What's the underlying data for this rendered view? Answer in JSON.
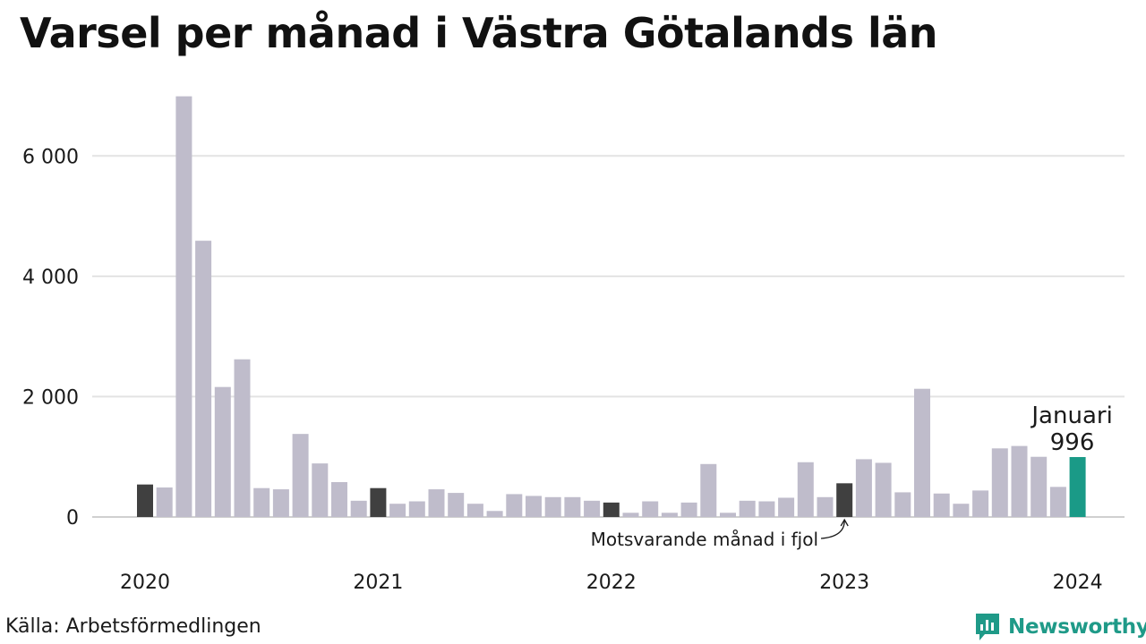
{
  "title": "Varsel per månad i Västra Götalands län",
  "source": "Källa: Arbetsförmedlingen",
  "brand": {
    "name": "Newsworthy",
    "icon": "newsworthy-logo-icon",
    "color": "#1f9a88"
  },
  "colors": {
    "bar": "#bfbccb",
    "same_month": "#404040",
    "current": "#1a9a87",
    "grid": "#e3e3e3"
  },
  "chart_data": {
    "type": "bar",
    "title": "Varsel per månad i Västra Götalands län",
    "xlabel": "",
    "ylabel": "",
    "ylim": [
      0,
      7000
    ],
    "yticks": [
      0,
      2000,
      4000,
      6000
    ],
    "ytick_labels": [
      "0",
      "2 000",
      "4 000",
      "6 000"
    ],
    "xtick_labels": [
      {
        "label": "2020",
        "index": 0
      },
      {
        "label": "2021",
        "index": 12
      },
      {
        "label": "2022",
        "index": 24
      },
      {
        "label": "2023",
        "index": 36
      },
      {
        "label": "2024",
        "index": 48
      }
    ],
    "grid": true,
    "values": [
      540,
      490,
      6990,
      4590,
      2160,
      2620,
      480,
      460,
      1380,
      890,
      580,
      270,
      480,
      220,
      260,
      460,
      400,
      220,
      100,
      380,
      350,
      330,
      330,
      270,
      240,
      70,
      260,
      70,
      240,
      880,
      70,
      270,
      260,
      320,
      910,
      330,
      560,
      960,
      900,
      410,
      2130,
      390,
      220,
      440,
      1140,
      1180,
      1000,
      500,
      996
    ],
    "same_month_indices": [
      0,
      12,
      24,
      36
    ],
    "current_index": 48,
    "annotations": {
      "current_label": "Januari",
      "current_value_label": "996",
      "previous_label": "Motsvarande månad i fjol"
    }
  }
}
